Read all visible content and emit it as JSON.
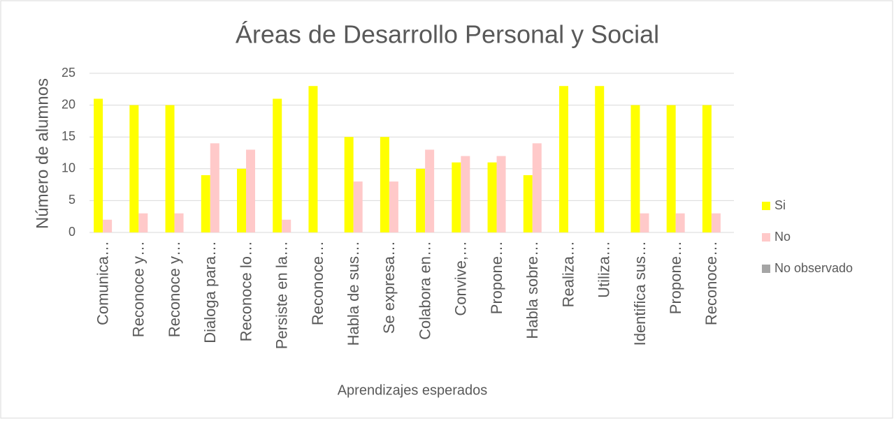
{
  "chart_data": {
    "type": "bar",
    "title": "Áreas de Desarrollo Personal y Social",
    "x_label": "Aprendizajes esperados",
    "y_label": "Número de alumnos",
    "categories": [
      "Comunica…",
      "Reconoce y…",
      "Reconoce y…",
      "Dialoga para…",
      "Reconoce lo…",
      "Persiste en la…",
      "Reconoce…",
      "Habla de sus…",
      "Se expresa…",
      "Colabora en…",
      "Convive,…",
      "Propone…",
      "Habla sobre…",
      "Realiza…",
      "Utiliza…",
      "Identifica sus…",
      "Propone…",
      "Reconoce…"
    ],
    "series": [
      {
        "name": "Si",
        "color": "#ffff00",
        "values": [
          21,
          20,
          20,
          9,
          10,
          21,
          23,
          15,
          15,
          10,
          11,
          11,
          9,
          23,
          23,
          20,
          20,
          20
        ]
      },
      {
        "name": "No",
        "color": "#ffc9c9",
        "values": [
          2,
          3,
          3,
          14,
          13,
          2,
          0,
          8,
          8,
          13,
          12,
          12,
          14,
          0,
          0,
          3,
          3,
          3
        ]
      },
      {
        "name": "No observado",
        "color": "#a5a5a5",
        "values": [
          0,
          0,
          0,
          0,
          0,
          0,
          0,
          0,
          0,
          0,
          0,
          0,
          0,
          0,
          0,
          0,
          0,
          0
        ]
      }
    ],
    "ylim": [
      0,
      25
    ],
    "yticks": [
      0,
      5,
      10,
      15,
      20,
      25
    ],
    "grid": true,
    "legend": "right"
  }
}
